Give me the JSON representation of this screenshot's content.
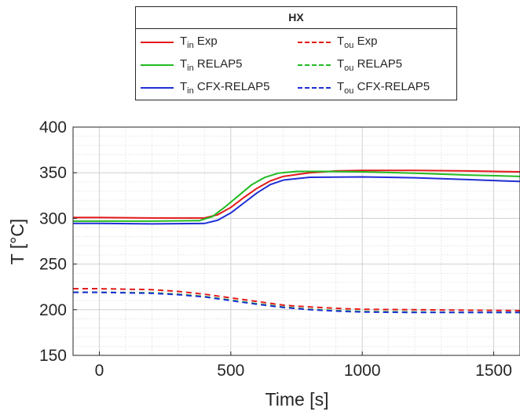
{
  "chart_data": {
    "type": "line",
    "legend_title": "HX",
    "xlabel": "Time [s]",
    "ylabel": "T [°C]",
    "xlim": [
      -100,
      1600
    ],
    "ylim": [
      150,
      400
    ],
    "xticks": [
      0,
      500,
      1000,
      1500
    ],
    "yticks": [
      150,
      200,
      250,
      300,
      350,
      400
    ],
    "grid": "major and minor",
    "legend_placement": "above plot",
    "series": [
      {
        "name": "T_in Exp",
        "legend_main": "T",
        "legend_sub": "in",
        "legend_rest": "Exp",
        "color": "#e31a1c",
        "dash": "solid",
        "x": [
          -100,
          0,
          200,
          400,
          450,
          500,
          550,
          600,
          650,
          700,
          800,
          900,
          1000,
          1200,
          1400,
          1600
        ],
        "y": [
          301,
          301,
          300.5,
          300.5,
          304,
          312,
          323,
          333,
          341,
          346,
          350,
          352,
          352.5,
          352.5,
          352,
          351
        ]
      },
      {
        "name": "T_in RELAP5",
        "legend_main": "T",
        "legend_sub": "in",
        "legend_rest": "RELAP5",
        "color": "#22bb22",
        "dash": "solid",
        "x": [
          -100,
          0,
          200,
          380,
          430,
          480,
          530,
          580,
          630,
          680,
          750,
          850,
          1000,
          1200,
          1400,
          1600
        ],
        "y": [
          297,
          297,
          297,
          297.5,
          302,
          313,
          325,
          337,
          345,
          349.5,
          351.5,
          351.5,
          351,
          349.5,
          347.5,
          346
        ]
      },
      {
        "name": "T_in CFX-RELAP5",
        "legend_main": "T",
        "legend_sub": "in",
        "legend_rest": "CFX-RELAP5",
        "color": "#1f2fd6",
        "dash": "solid",
        "x": [
          -100,
          0,
          200,
          400,
          450,
          500,
          550,
          600,
          650,
          700,
          800,
          1000,
          1200,
          1400,
          1600
        ],
        "y": [
          294.5,
          294.5,
          294,
          294.5,
          298,
          306,
          317,
          328,
          337,
          342,
          345,
          345.5,
          344.5,
          342.5,
          340.5
        ]
      },
      {
        "name": "T_ou Exp",
        "legend_main": "T",
        "legend_sub": "ou",
        "legend_rest": "Exp",
        "color": "#e31a1c",
        "dash": "dashed",
        "x": [
          -100,
          0,
          200,
          300,
          400,
          500,
          600,
          700,
          800,
          900,
          1000,
          1200,
          1400,
          1600
        ],
        "y": [
          223,
          223,
          222,
          220,
          217,
          213,
          209,
          205,
          203,
          201.5,
          200.5,
          200,
          199.5,
          199
        ]
      },
      {
        "name": "T_ou RELAP5",
        "legend_main": "T",
        "legend_sub": "ou",
        "legend_rest": "RELAP5",
        "color": "#22bb22",
        "dash": "dashed",
        "x": [
          -100,
          0,
          200,
          300,
          400,
          500,
          600,
          700,
          800,
          900,
          1000,
          1200,
          1400,
          1600
        ],
        "y": [
          219,
          219,
          218.5,
          217,
          214.5,
          210.5,
          206.5,
          203,
          200.5,
          199,
          198,
          197.5,
          197,
          197
        ]
      },
      {
        "name": "T_ou CFX-RELAP5",
        "legend_main": "T",
        "legend_sub": "ou",
        "legend_rest": "CFX-RELAP5",
        "color": "#1f2fd6",
        "dash": "dashed",
        "x": [
          -100,
          0,
          200,
          300,
          400,
          500,
          600,
          700,
          800,
          900,
          1000,
          1200,
          1400,
          1600
        ],
        "y": [
          219,
          219,
          218,
          216.5,
          214,
          210,
          206,
          202.5,
          200,
          198.5,
          197.5,
          197,
          197,
          197
        ]
      }
    ]
  }
}
